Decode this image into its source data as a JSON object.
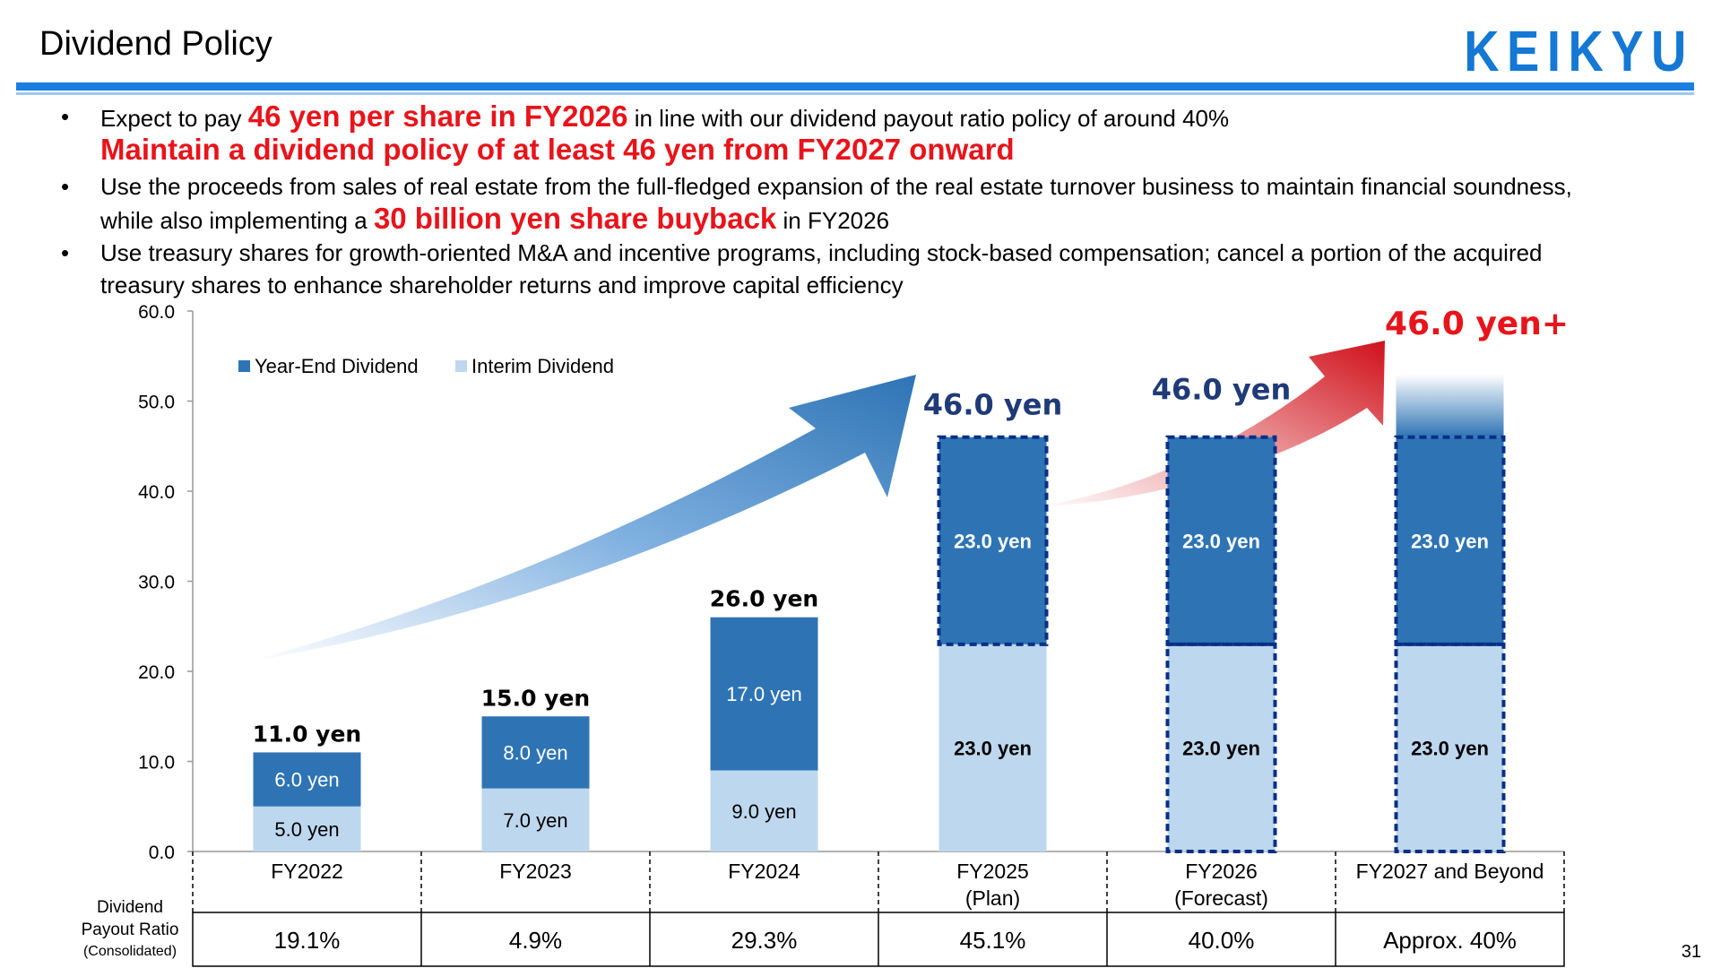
{
  "header": {
    "title": "Dividend Policy",
    "logo": "KEIKYU",
    "page_number": "31"
  },
  "bullets": [
    {
      "pre": "Expect to pay ",
      "em": "46 yen per share in FY2026",
      "post": " in line with our dividend payout ratio policy of around 40%"
    },
    {
      "em2": "Maintain a dividend policy of at least 46 yen from FY2027 onward"
    },
    {
      "pre": "Use the proceeds from sales of real estate from the full-fledged expansion of the real estate turnover business to maintain financial soundness,"
    },
    {
      "pre": "while also implementing a ",
      "em": "30 billion yen share buyback",
      "post": "  in FY2026"
    },
    {
      "pre": "Use treasury shares for growth-oriented M&A and incentive programs, including stock-based compensation; cancel a portion of the acquired"
    },
    {
      "pre": "treasury shares to enhance shareholder returns and improve capital efficiency"
    }
  ],
  "colors": {
    "year_end": "#2e74b5",
    "interim": "#bdd7ee",
    "accent_red": "#e8141b",
    "navy": "#1f3a78"
  },
  "chart_data": {
    "type": "bar",
    "stacked": true,
    "categories": [
      "FY2022",
      "FY2023",
      "FY2024",
      "FY2025\n(Plan)",
      "FY2026\n(Forecast)",
      "FY2027 and Beyond"
    ],
    "series": [
      {
        "name": "Interim Dividend",
        "values": [
          5.0,
          7.0,
          9.0,
          23.0,
          23.0,
          23.0
        ],
        "labels": [
          "5.0 yen",
          "7.0 yen",
          "9.0 yen",
          "23.0 yen",
          "23.0 yen",
          "23.0 yen"
        ]
      },
      {
        "name": "Year-End Dividend",
        "values": [
          6.0,
          8.0,
          17.0,
          23.0,
          23.0,
          23.0
        ],
        "labels": [
          "6.0 yen",
          "8.0 yen",
          "17.0 yen",
          "23.0 yen",
          "23.0 yen",
          "23.0 yen"
        ]
      }
    ],
    "totals": [
      "11.0 yen",
      "15.0 yen",
      "26.0 yen",
      "46.0 yen",
      "46.0 yen",
      "46.0 yen+"
    ],
    "ylim": [
      0,
      60
    ],
    "yticks": [
      "0.0",
      "10.0",
      "20.0",
      "30.0",
      "40.0",
      "50.0",
      "60.0"
    ],
    "legend_position": "top-left",
    "payout_ratio": {
      "label_lines": [
        "Dividend",
        "Payout Ratio",
        "(Consolidated)"
      ],
      "values": [
        "19.1%",
        "4.9%",
        "29.3%",
        "45.1%",
        "40.0%",
        "Approx. 40%"
      ]
    }
  }
}
